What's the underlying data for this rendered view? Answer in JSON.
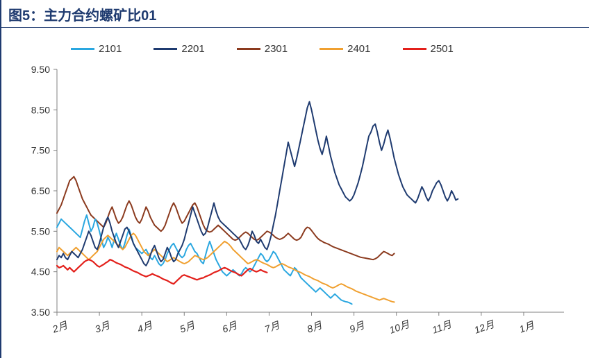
{
  "title": "图5：主力合约螺矿比01",
  "title_color": "#1f3b70",
  "title_fontsize": 20,
  "chart": {
    "type": "line",
    "background_color": "#ffffff",
    "axis_color": "#808080",
    "ylim": [
      3.5,
      9.5
    ],
    "ytick_step": 1.0,
    "ytick_format": "fixed2",
    "yticks": [
      "3.50",
      "4.50",
      "5.50",
      "6.50",
      "7.50",
      "8.50",
      "9.50"
    ],
    "x_categories": [
      "2月",
      "3月",
      "4月",
      "5月",
      "6月",
      "7月",
      "8月",
      "9月",
      "10月",
      "11月",
      "12月",
      "1月"
    ],
    "x_points_per_category": 20,
    "legend": {
      "position": "top",
      "fontsize": 15,
      "items": [
        {
          "label": "2101",
          "color": "#2aa7e0",
          "width": 2
        },
        {
          "label": "2201",
          "color": "#1f3b70",
          "width": 2
        },
        {
          "label": "2301",
          "color": "#8b3a1e",
          "width": 2
        },
        {
          "label": "2401",
          "color": "#f0a030",
          "width": 2
        },
        {
          "label": "2501",
          "color": "#e3201b",
          "width": 2
        }
      ]
    },
    "series": {
      "2101": {
        "color": "#2aa7e0",
        "width": 2,
        "data": [
          5.6,
          5.7,
          5.8,
          5.75,
          5.7,
          5.65,
          5.6,
          5.55,
          5.5,
          5.45,
          5.4,
          5.35,
          5.55,
          5.75,
          5.9,
          5.7,
          5.5,
          5.6,
          5.8,
          5.7,
          5.5,
          5.3,
          5.1,
          5.2,
          5.35,
          5.25,
          5.1,
          5.3,
          5.45,
          5.3,
          5.15,
          5.05,
          5.2,
          5.4,
          5.55,
          5.4,
          5.2,
          5.1,
          5.05,
          5.0,
          4.95,
          5.0,
          5.05,
          4.95,
          4.85,
          4.8,
          4.9,
          4.8,
          4.7,
          4.65,
          4.7,
          4.8,
          4.95,
          5.05,
          5.15,
          5.2,
          5.1,
          5.0,
          4.9,
          4.85,
          4.9,
          5.05,
          5.15,
          5.2,
          5.1,
          5.0,
          4.95,
          4.85,
          4.75,
          4.7,
          4.9,
          5.1,
          5.25,
          5.1,
          4.95,
          4.8,
          4.7,
          4.6,
          4.5,
          4.45,
          4.4,
          4.45,
          4.5,
          4.55,
          4.5,
          4.45,
          4.4,
          4.45,
          4.55,
          4.6,
          4.55,
          4.5,
          4.55,
          4.65,
          4.75,
          4.85,
          4.95,
          4.9,
          4.8,
          4.75,
          4.8,
          4.9,
          5.0,
          4.95,
          4.85,
          4.75,
          4.65,
          4.55,
          4.5,
          4.45,
          4.4,
          4.5,
          4.6,
          4.55,
          4.45,
          4.35,
          4.3,
          4.25,
          4.2,
          4.15,
          4.1,
          4.05,
          4.0,
          4.05,
          4.1,
          4.05,
          4.0,
          3.95,
          3.9,
          3.85,
          3.9,
          3.95,
          3.9,
          3.85,
          3.8,
          3.78,
          3.76,
          3.75,
          3.73,
          3.7
        ]
      },
      "2201": {
        "color": "#1f3b70",
        "width": 2,
        "data": [
          4.8,
          4.9,
          4.85,
          4.95,
          4.85,
          4.8,
          4.9,
          5.0,
          4.95,
          4.9,
          4.85,
          4.95,
          5.05,
          5.2,
          5.35,
          5.5,
          5.4,
          5.25,
          5.1,
          5.05,
          5.2,
          5.4,
          5.6,
          5.75,
          5.85,
          5.7,
          5.5,
          5.35,
          5.2,
          5.1,
          5.25,
          5.4,
          5.55,
          5.6,
          5.5,
          5.35,
          5.2,
          5.1,
          5.0,
          4.9,
          4.8,
          4.7,
          4.65,
          4.75,
          4.9,
          5.05,
          5.15,
          5.0,
          4.85,
          4.75,
          4.8,
          4.95,
          5.1,
          5.0,
          4.85,
          4.75,
          4.8,
          4.95,
          5.05,
          5.15,
          5.3,
          5.5,
          5.7,
          5.9,
          6.1,
          5.95,
          5.8,
          5.65,
          5.5,
          5.4,
          5.45,
          5.6,
          5.8,
          6.0,
          6.2,
          6.0,
          5.85,
          5.75,
          5.7,
          5.65,
          5.6,
          5.55,
          5.5,
          5.45,
          5.4,
          5.35,
          5.3,
          5.2,
          5.1,
          5.05,
          5.15,
          5.3,
          5.5,
          5.4,
          5.25,
          5.2,
          5.3,
          5.2,
          5.1,
          5.05,
          5.2,
          5.4,
          5.65,
          5.9,
          6.2,
          6.5,
          6.8,
          7.1,
          7.4,
          7.7,
          7.5,
          7.3,
          7.1,
          7.3,
          7.55,
          7.8,
          8.05,
          8.3,
          8.55,
          8.7,
          8.5,
          8.25,
          8.0,
          7.75,
          7.55,
          7.4,
          7.6,
          7.85,
          7.6,
          7.35,
          7.15,
          6.95,
          6.8,
          6.65,
          6.55,
          6.45,
          6.35,
          6.3,
          6.25,
          6.3,
          6.4,
          6.55,
          6.7,
          6.9,
          7.1,
          7.35,
          7.6,
          7.85,
          7.95,
          8.1,
          8.15,
          7.95,
          7.7,
          7.5,
          7.65,
          7.85,
          8.0,
          7.8,
          7.55,
          7.3,
          7.1,
          6.9,
          6.75,
          6.6,
          6.5,
          6.4,
          6.35,
          6.3,
          6.25,
          6.2,
          6.3,
          6.45,
          6.6,
          6.5,
          6.35,
          6.25,
          6.35,
          6.5,
          6.6,
          6.7,
          6.75,
          6.65,
          6.5,
          6.35,
          6.25,
          6.35,
          6.5,
          6.4,
          6.27,
          6.3
        ]
      },
      "2301": {
        "color": "#8b3a1e",
        "width": 2,
        "data": [
          5.95,
          6.05,
          6.15,
          6.3,
          6.45,
          6.6,
          6.75,
          6.8,
          6.85,
          6.75,
          6.6,
          6.45,
          6.3,
          6.2,
          6.1,
          6.0,
          5.9,
          5.85,
          5.8,
          5.75,
          5.7,
          5.65,
          5.6,
          5.7,
          5.85,
          6.0,
          6.1,
          5.95,
          5.8,
          5.7,
          5.75,
          5.85,
          6.0,
          6.15,
          6.25,
          6.15,
          6.0,
          5.85,
          5.75,
          5.7,
          5.8,
          5.95,
          6.1,
          6.0,
          5.85,
          5.75,
          5.65,
          5.6,
          5.55,
          5.5,
          5.55,
          5.65,
          5.8,
          5.95,
          6.1,
          6.2,
          6.1,
          5.95,
          5.8,
          5.7,
          5.75,
          5.85,
          5.95,
          6.05,
          6.15,
          6.2,
          6.1,
          5.95,
          5.8,
          5.65,
          5.55,
          5.5,
          5.48,
          5.5,
          5.55,
          5.6,
          5.65,
          5.6,
          5.55,
          5.5,
          5.45,
          5.4,
          5.35,
          5.3,
          5.28,
          5.3,
          5.35,
          5.4,
          5.45,
          5.48,
          5.45,
          5.4,
          5.35,
          5.3,
          5.28,
          5.3,
          5.35,
          5.4,
          5.45,
          5.5,
          5.48,
          5.45,
          5.4,
          5.35,
          5.32,
          5.3,
          5.32,
          5.35,
          5.4,
          5.45,
          5.4,
          5.35,
          5.3,
          5.28,
          5.3,
          5.35,
          5.45,
          5.55,
          5.6,
          5.58,
          5.52,
          5.45,
          5.38,
          5.32,
          5.28,
          5.25,
          5.22,
          5.2,
          5.18,
          5.15,
          5.12,
          5.1,
          5.08,
          5.06,
          5.04,
          5.02,
          5.0,
          4.98,
          4.96,
          4.94,
          4.92,
          4.9,
          4.88,
          4.86,
          4.85,
          4.84,
          4.83,
          4.82,
          4.81,
          4.8,
          4.82,
          4.85,
          4.9,
          4.95,
          5.0,
          4.98,
          4.95,
          4.92,
          4.9,
          4.95
        ]
      },
      "2401": {
        "color": "#f0a030",
        "width": 2,
        "data": [
          5.0,
          5.1,
          5.05,
          5.0,
          4.95,
          4.9,
          4.95,
          5.0,
          5.05,
          5.1,
          5.05,
          5.0,
          4.95,
          4.9,
          4.85,
          4.8,
          4.85,
          4.9,
          4.95,
          5.0,
          5.1,
          5.2,
          5.3,
          5.35,
          5.4,
          5.35,
          5.3,
          5.25,
          5.2,
          5.15,
          5.1,
          5.05,
          5.1,
          5.2,
          5.3,
          5.4,
          5.45,
          5.4,
          5.3,
          5.2,
          5.1,
          5.0,
          4.95,
          4.9,
          4.95,
          5.0,
          5.05,
          5.0,
          4.95,
          4.9,
          4.85,
          4.8,
          4.75,
          4.78,
          4.82,
          4.85,
          4.82,
          4.78,
          4.75,
          4.72,
          4.7,
          4.72,
          4.75,
          4.8,
          4.85,
          4.9,
          4.88,
          4.85,
          4.82,
          4.8,
          4.82,
          4.85,
          4.9,
          4.95,
          5.0,
          5.05,
          5.1,
          5.15,
          5.2,
          5.25,
          5.22,
          5.18,
          5.12,
          5.05,
          5.0,
          4.95,
          4.9,
          4.85,
          4.8,
          4.75,
          4.7,
          4.72,
          4.75,
          4.78,
          4.8,
          4.78,
          4.75,
          4.72,
          4.7,
          4.68,
          4.65,
          4.62,
          4.6,
          4.62,
          4.65,
          4.68,
          4.7,
          4.68,
          4.65,
          4.62,
          4.6,
          4.58,
          4.55,
          4.52,
          4.5,
          4.48,
          4.45,
          4.42,
          4.4,
          4.38,
          4.35,
          4.32,
          4.3,
          4.28,
          4.25,
          4.22,
          4.2,
          4.18,
          4.15,
          4.12,
          4.1,
          4.12,
          4.15,
          4.18,
          4.2,
          4.18,
          4.15,
          4.12,
          4.1,
          4.08,
          4.05,
          4.02,
          4.0,
          3.98,
          3.96,
          3.94,
          3.92,
          3.9,
          3.88,
          3.86,
          3.84,
          3.82,
          3.8,
          3.82,
          3.84,
          3.82,
          3.8,
          3.78,
          3.76,
          3.75
        ]
      },
      "2501": {
        "color": "#e3201b",
        "width": 2.2,
        "data": [
          4.65,
          4.6,
          4.62,
          4.65,
          4.6,
          4.55,
          4.6,
          4.55,
          4.5,
          4.55,
          4.6,
          4.65,
          4.7,
          4.75,
          4.78,
          4.8,
          4.78,
          4.75,
          4.7,
          4.65,
          4.62,
          4.65,
          4.68,
          4.72,
          4.75,
          4.8,
          4.78,
          4.75,
          4.72,
          4.7,
          4.68,
          4.65,
          4.62,
          4.6,
          4.58,
          4.55,
          4.52,
          4.5,
          4.48,
          4.45,
          4.42,
          4.4,
          4.38,
          4.4,
          4.42,
          4.45,
          4.42,
          4.4,
          4.38,
          4.35,
          4.32,
          4.3,
          4.28,
          4.25,
          4.22,
          4.2,
          4.25,
          4.3,
          4.35,
          4.4,
          4.42,
          4.4,
          4.38,
          4.36,
          4.34,
          4.32,
          4.3,
          4.32,
          4.34,
          4.35,
          4.38,
          4.4,
          4.42,
          4.45,
          4.48,
          4.5,
          4.52,
          4.55,
          4.58,
          4.6,
          4.58,
          4.55,
          4.52,
          4.5,
          4.48,
          4.45,
          4.42,
          4.4,
          4.45,
          4.5,
          4.55,
          4.58,
          4.55,
          4.52,
          4.5,
          4.52,
          4.55,
          4.52,
          4.5,
          4.48
        ]
      }
    }
  }
}
